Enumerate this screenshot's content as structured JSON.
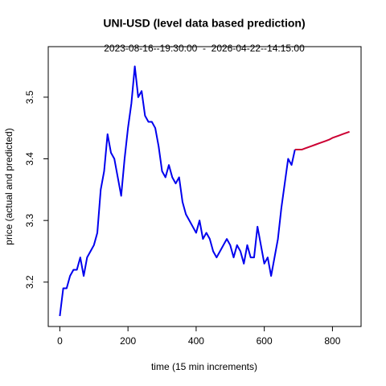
{
  "chart_data": {
    "type": "line",
    "title": "UNI-USD (level data based prediction)",
    "subtitle": "2023-08-16--19:30:00  -  2026-04-22--14:15:00",
    "x_label": "time (15 min increments)",
    "y_label": "price (actual and predicted)",
    "xlim": [
      -34,
      884
    ],
    "xticks": [
      0,
      200,
      400,
      600,
      800
    ],
    "ylim": [
      3.128,
      3.582
    ],
    "yticks": [
      3.2,
      3.3,
      3.4,
      3.5
    ],
    "series": [
      {
        "color": "#0000ee",
        "x": [
          0,
          10,
          20,
          30,
          40,
          50,
          60,
          70,
          80,
          90,
          100,
          110,
          120,
          130,
          140,
          150,
          160,
          170,
          180,
          190,
          200,
          210,
          220,
          230,
          240,
          250,
          260,
          270,
          280,
          290,
          300,
          310,
          320,
          330,
          340,
          350,
          360,
          370,
          380,
          390,
          400,
          410,
          420,
          430,
          440,
          450,
          460,
          470,
          480,
          490,
          500,
          510,
          520,
          530,
          540,
          550,
          560,
          570,
          580,
          590,
          600,
          610,
          620,
          630,
          640,
          650,
          660,
          670,
          680,
          690
        ],
        "values": [
          3.145,
          3.19,
          3.19,
          3.21,
          3.22,
          3.22,
          3.24,
          3.21,
          3.24,
          3.25,
          3.26,
          3.28,
          3.35,
          3.38,
          3.44,
          3.41,
          3.4,
          3.37,
          3.34,
          3.4,
          3.45,
          3.49,
          3.55,
          3.5,
          3.51,
          3.47,
          3.46,
          3.46,
          3.45,
          3.42,
          3.38,
          3.37,
          3.39,
          3.37,
          3.36,
          3.37,
          3.33,
          3.31,
          3.3,
          3.29,
          3.28,
          3.3,
          3.27,
          3.28,
          3.27,
          3.25,
          3.24,
          3.25,
          3.26,
          3.27,
          3.26,
          3.24,
          3.26,
          3.25,
          3.23,
          3.26,
          3.24,
          3.24,
          3.29,
          3.26,
          3.23,
          3.24,
          3.21,
          3.24,
          3.27,
          3.32,
          3.36,
          3.4,
          3.39,
          3.415
        ]
      },
      {
        "color": "#cc0033",
        "x": [
          690,
          700,
          710,
          720,
          730,
          740,
          750,
          760,
          770,
          780,
          790,
          800,
          810,
          820,
          830,
          840,
          850
        ],
        "values": [
          3.415,
          3.415,
          3.415,
          3.417,
          3.419,
          3.421,
          3.423,
          3.425,
          3.427,
          3.429,
          3.431,
          3.434,
          3.436,
          3.438,
          3.44,
          3.442,
          3.444
        ]
      }
    ]
  }
}
